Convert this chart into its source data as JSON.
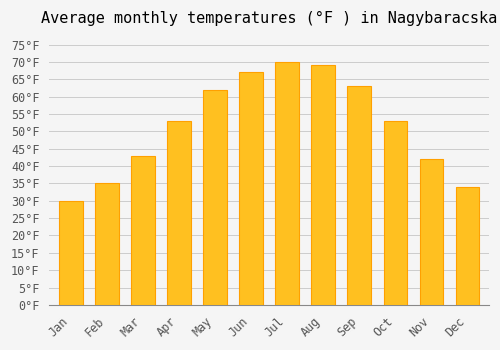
{
  "months": [
    "Jan",
    "Feb",
    "Mar",
    "Apr",
    "May",
    "Jun",
    "Jul",
    "Aug",
    "Sep",
    "Oct",
    "Nov",
    "Dec"
  ],
  "values": [
    30,
    35,
    43,
    53,
    62,
    67,
    70,
    69,
    63,
    53,
    42,
    34
  ],
  "bar_color_face": "#FFC020",
  "bar_color_edge": "#FFA000",
  "title": "Average monthly temperatures (°F ) in Nagybaracska",
  "ylabel": "",
  "ylim_min": 0,
  "ylim_max": 78,
  "yticks": [
    0,
    5,
    10,
    15,
    20,
    25,
    30,
    35,
    40,
    45,
    50,
    55,
    60,
    65,
    70,
    75
  ],
  "ytick_labels": [
    "0°F",
    "5°F",
    "10°F",
    "15°F",
    "20°F",
    "25°F",
    "30°F",
    "35°F",
    "40°F",
    "45°F",
    "50°F",
    "55°F",
    "60°F",
    "65°F",
    "70°F",
    "75°F"
  ],
  "bg_color": "#F5F5F5",
  "grid_color": "#CCCCCC",
  "title_fontsize": 11,
  "tick_fontsize": 8.5,
  "font_family": "monospace"
}
